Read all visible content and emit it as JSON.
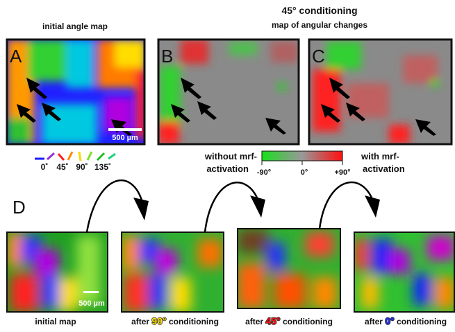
{
  "top": {
    "title": "45° conditioning",
    "subtitle": "map of angular changes",
    "panel_a_title": "initial angle map",
    "panels": [
      "A",
      "B",
      "C"
    ],
    "scale_bar": "500 µm",
    "angle_legend": [
      "0˚",
      "45˚",
      "90˚",
      "135˚"
    ],
    "colorbar": {
      "left_label": [
        "without mrf-",
        "activation"
      ],
      "right_label": [
        "with mrf-",
        "activation"
      ],
      "ticks": [
        "-90°",
        "0°",
        "+90°"
      ]
    }
  },
  "bottom": {
    "panel": "D",
    "scale_bar": "500 µm",
    "captions": [
      {
        "text": "initial map"
      },
      {
        "prefix": "after",
        "highlight": "90°",
        "suffix": "conditioning"
      },
      {
        "prefix": "after",
        "highlight": "45°",
        "suffix": "conditioning"
      },
      {
        "prefix": "after",
        "highlight": "0°",
        "suffix": "conditioning"
      }
    ]
  }
}
